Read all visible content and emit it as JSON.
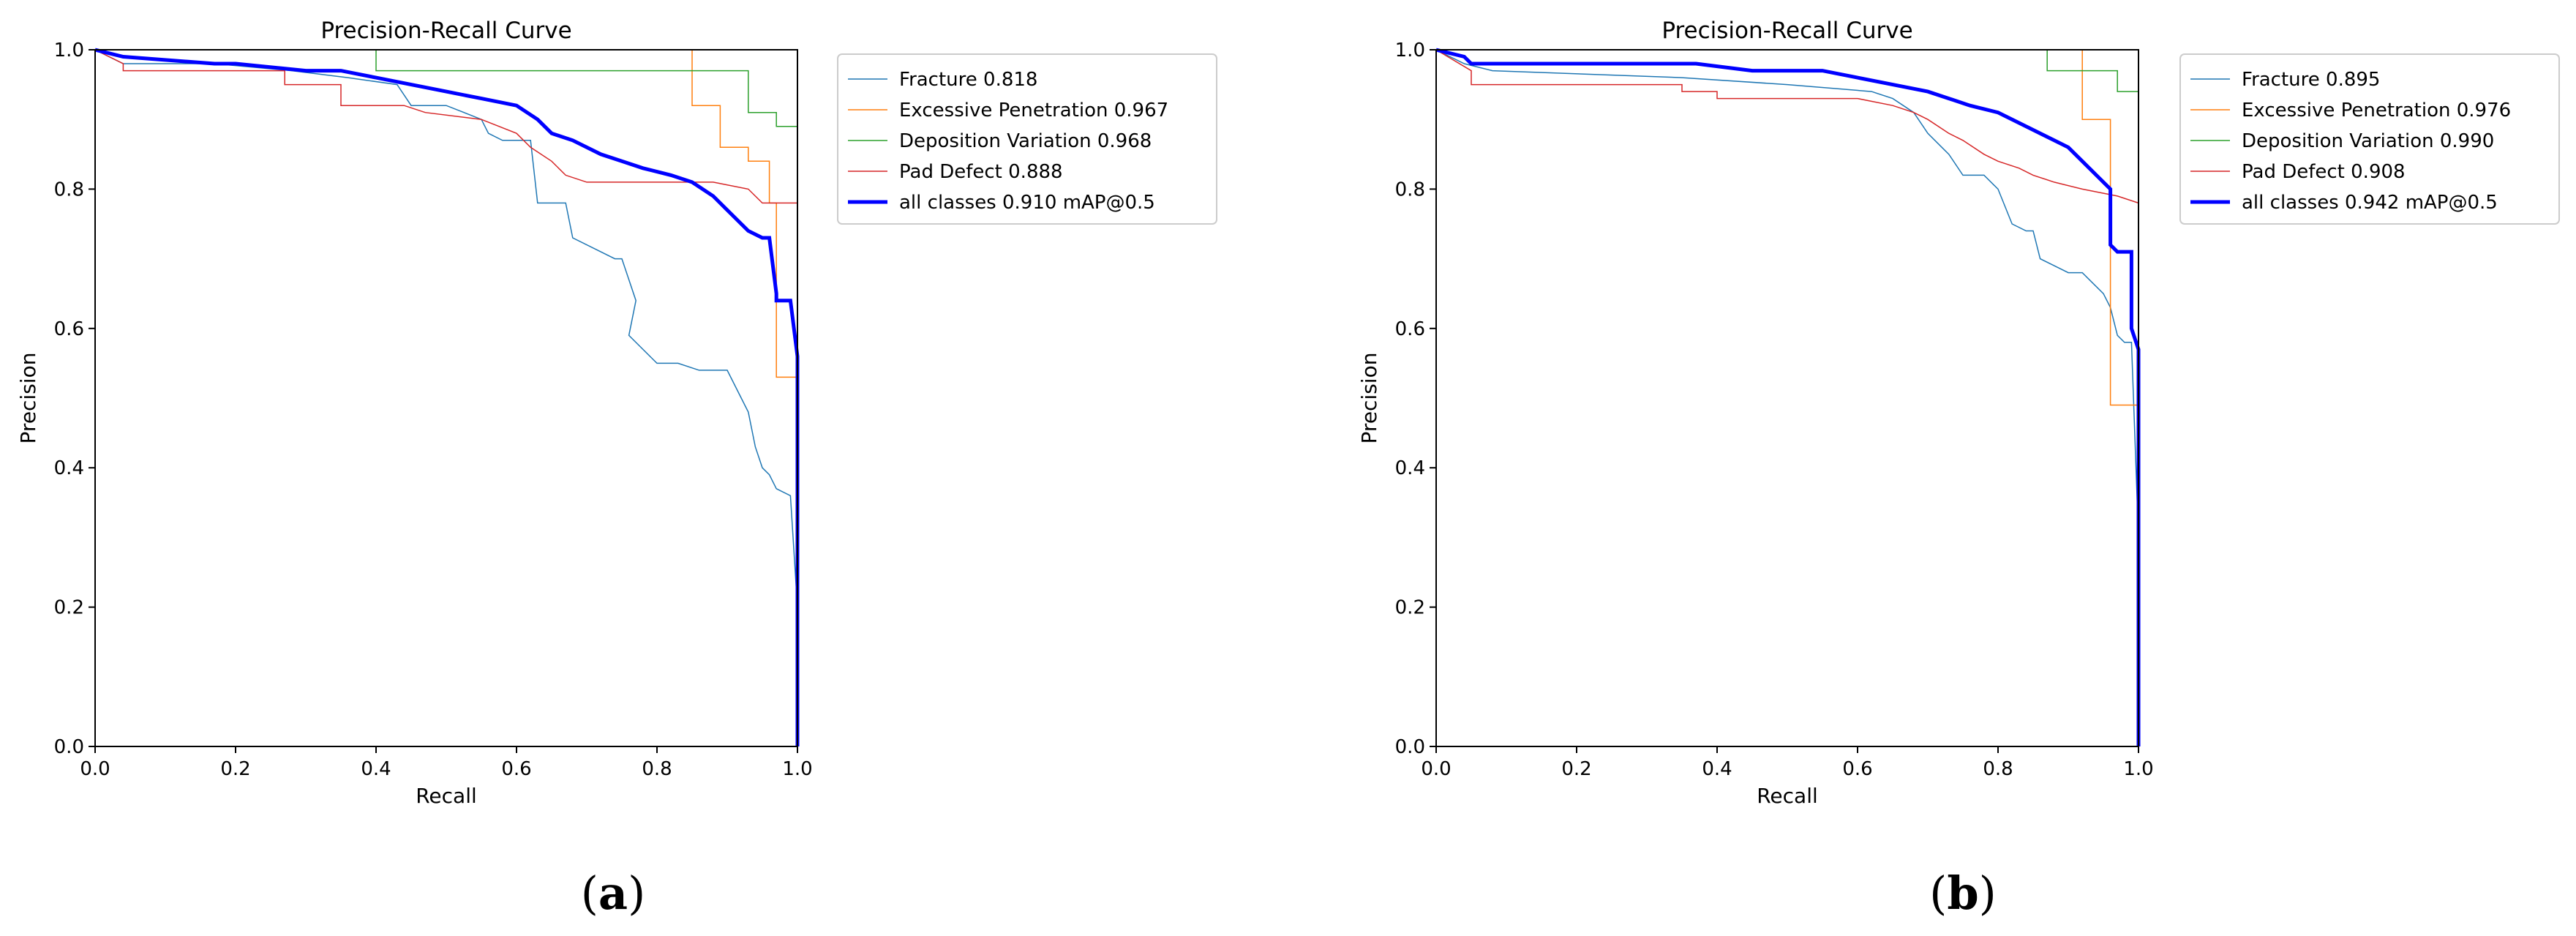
{
  "chart_data": [
    {
      "type": "line",
      "panel_label": "a",
      "title": "Precision-Recall Curve",
      "xlabel": "Recall",
      "ylabel": "Precision",
      "xlim": [
        0,
        1
      ],
      "ylim": [
        0,
        1
      ],
      "xticks": [
        "0.0",
        "0.2",
        "0.4",
        "0.6",
        "0.8",
        "1.0"
      ],
      "yticks": [
        "0.0",
        "0.2",
        "0.4",
        "0.6",
        "0.8",
        "1.0"
      ],
      "grid": false,
      "legend_position": "outside-top-right",
      "series": [
        {
          "name": "Fracture 0.818",
          "color": "#1f77b4",
          "width": 1.5,
          "x": [
            0,
            0.04,
            0.17,
            0.28,
            0.36,
            0.43,
            0.45,
            0.5,
            0.55,
            0.56,
            0.58,
            0.6,
            0.62,
            0.63,
            0.64,
            0.67,
            0.68,
            0.72,
            0.74,
            0.75,
            0.77,
            0.76,
            0.79,
            0.8,
            0.83,
            0.86,
            0.87,
            0.9,
            0.92,
            0.93,
            0.94,
            0.95,
            0.96,
            0.97,
            0.99,
            1.0,
            1.0
          ],
          "y": [
            1.0,
            0.98,
            0.98,
            0.97,
            0.96,
            0.95,
            0.92,
            0.92,
            0.9,
            0.88,
            0.87,
            0.87,
            0.87,
            0.78,
            0.78,
            0.78,
            0.73,
            0.71,
            0.7,
            0.7,
            0.64,
            0.59,
            0.56,
            0.55,
            0.55,
            0.54,
            0.54,
            0.54,
            0.5,
            0.48,
            0.43,
            0.4,
            0.39,
            0.37,
            0.36,
            0.2,
            0.0
          ]
        },
        {
          "name": "Excessive Penetration 0.967",
          "color": "#ff7f0e",
          "width": 1.5,
          "x": [
            0.85,
            0.85,
            0.89,
            0.89,
            0.93,
            0.93,
            0.96,
            0.96,
            0.97,
            0.97,
            1.0,
            1.0
          ],
          "y": [
            1.0,
            0.92,
            0.92,
            0.86,
            0.86,
            0.84,
            0.84,
            0.78,
            0.78,
            0.53,
            0.53,
            0.0
          ]
        },
        {
          "name": "Deposition Variation 0.968",
          "color": "#2ca02c",
          "width": 1.5,
          "x": [
            0,
            0.4,
            0.4,
            0.93,
            0.93,
            0.97,
            0.97,
            1.0,
            1.0
          ],
          "y": [
            1.0,
            1.0,
            0.97,
            0.97,
            0.91,
            0.91,
            0.89,
            0.89,
            0.0
          ]
        },
        {
          "name": "Pad Defect 0.888",
          "color": "#d62728",
          "width": 1.5,
          "x": [
            0,
            0.04,
            0.04,
            0.27,
            0.27,
            0.35,
            0.35,
            0.44,
            0.47,
            0.55,
            0.6,
            0.62,
            0.65,
            0.67,
            0.7,
            0.75,
            0.8,
            0.85,
            0.88,
            0.93,
            0.95,
            0.98,
            1.0,
            1.0
          ],
          "y": [
            1.0,
            0.98,
            0.97,
            0.97,
            0.95,
            0.95,
            0.92,
            0.92,
            0.91,
            0.9,
            0.88,
            0.86,
            0.84,
            0.82,
            0.81,
            0.81,
            0.81,
            0.81,
            0.81,
            0.8,
            0.78,
            0.78,
            0.78,
            0.0
          ]
        },
        {
          "name": "all classes 0.910 mAP@0.5",
          "color": "#0000ff",
          "width": 5,
          "x": [
            0,
            0.04,
            0.17,
            0.2,
            0.3,
            0.35,
            0.4,
            0.45,
            0.5,
            0.55,
            0.6,
            0.63,
            0.65,
            0.68,
            0.72,
            0.75,
            0.78,
            0.82,
            0.85,
            0.88,
            0.9,
            0.92,
            0.93,
            0.95,
            0.96,
            0.97,
            0.97,
            0.99,
            1.0,
            1.0
          ],
          "y": [
            1.0,
            0.99,
            0.98,
            0.98,
            0.97,
            0.97,
            0.96,
            0.95,
            0.94,
            0.93,
            0.92,
            0.9,
            0.88,
            0.87,
            0.85,
            0.84,
            0.83,
            0.82,
            0.81,
            0.79,
            0.77,
            0.75,
            0.74,
            0.73,
            0.73,
            0.65,
            0.64,
            0.64,
            0.56,
            0.0
          ]
        }
      ]
    },
    {
      "type": "line",
      "panel_label": "b",
      "title": "Precision-Recall Curve",
      "xlabel": "Recall",
      "ylabel": "Precision",
      "xlim": [
        0,
        1
      ],
      "ylim": [
        0,
        1
      ],
      "xticks": [
        "0.0",
        "0.2",
        "0.4",
        "0.6",
        "0.8",
        "1.0"
      ],
      "yticks": [
        "0.0",
        "0.2",
        "0.4",
        "0.6",
        "0.8",
        "1.0"
      ],
      "grid": false,
      "legend_position": "outside-top-right",
      "series": [
        {
          "name": "Fracture 0.895",
          "color": "#1f77b4",
          "width": 1.5,
          "x": [
            0,
            0.04,
            0.08,
            0.35,
            0.5,
            0.62,
            0.65,
            0.68,
            0.7,
            0.72,
            0.73,
            0.75,
            0.78,
            0.8,
            0.82,
            0.84,
            0.85,
            0.86,
            0.88,
            0.9,
            0.92,
            0.93,
            0.95,
            0.96,
            0.97,
            0.98,
            0.99,
            1.0,
            1.0
          ],
          "y": [
            1.0,
            0.98,
            0.97,
            0.96,
            0.95,
            0.94,
            0.93,
            0.91,
            0.88,
            0.86,
            0.85,
            0.82,
            0.82,
            0.8,
            0.75,
            0.74,
            0.74,
            0.7,
            0.69,
            0.68,
            0.68,
            0.67,
            0.65,
            0.63,
            0.59,
            0.58,
            0.58,
            0.3,
            0.0
          ]
        },
        {
          "name": "Excessive Penetration 0.976",
          "color": "#ff7f0e",
          "width": 1.5,
          "x": [
            0.92,
            0.92,
            0.96,
            0.96,
            1.0,
            1.0
          ],
          "y": [
            1.0,
            0.9,
            0.9,
            0.49,
            0.49,
            0.0
          ]
        },
        {
          "name": "Deposition Variation 0.990",
          "color": "#2ca02c",
          "width": 1.5,
          "x": [
            0.87,
            0.87,
            0.97,
            0.97,
            1.0,
            1.0
          ],
          "y": [
            1.0,
            0.97,
            0.97,
            0.94,
            0.94,
            0.0
          ]
        },
        {
          "name": "Pad Defect 0.908",
          "color": "#d62728",
          "width": 1.5,
          "x": [
            0,
            0.05,
            0.05,
            0.35,
            0.35,
            0.4,
            0.4,
            0.6,
            0.65,
            0.68,
            0.7,
            0.73,
            0.75,
            0.78,
            0.8,
            0.83,
            0.85,
            0.88,
            0.92,
            0.97,
            1.0,
            1.0
          ],
          "y": [
            1.0,
            0.97,
            0.95,
            0.95,
            0.94,
            0.94,
            0.93,
            0.93,
            0.92,
            0.91,
            0.9,
            0.88,
            0.87,
            0.85,
            0.84,
            0.83,
            0.82,
            0.81,
            0.8,
            0.79,
            0.78,
            0.0
          ]
        },
        {
          "name": "all classes 0.942 mAP@0.5",
          "color": "#0000ff",
          "width": 5,
          "x": [
            0,
            0.04,
            0.05,
            0.1,
            0.2,
            0.3,
            0.37,
            0.45,
            0.55,
            0.6,
            0.65,
            0.7,
            0.73,
            0.76,
            0.8,
            0.82,
            0.84,
            0.88,
            0.9,
            0.92,
            0.94,
            0.96,
            0.96,
            0.97,
            0.99,
            0.99,
            1.0,
            1.0
          ],
          "y": [
            1.0,
            0.99,
            0.98,
            0.98,
            0.98,
            0.98,
            0.98,
            0.97,
            0.97,
            0.96,
            0.95,
            0.94,
            0.93,
            0.92,
            0.91,
            0.9,
            0.89,
            0.87,
            0.86,
            0.84,
            0.82,
            0.8,
            0.72,
            0.71,
            0.71,
            0.6,
            0.57,
            0.0
          ]
        }
      ]
    }
  ]
}
